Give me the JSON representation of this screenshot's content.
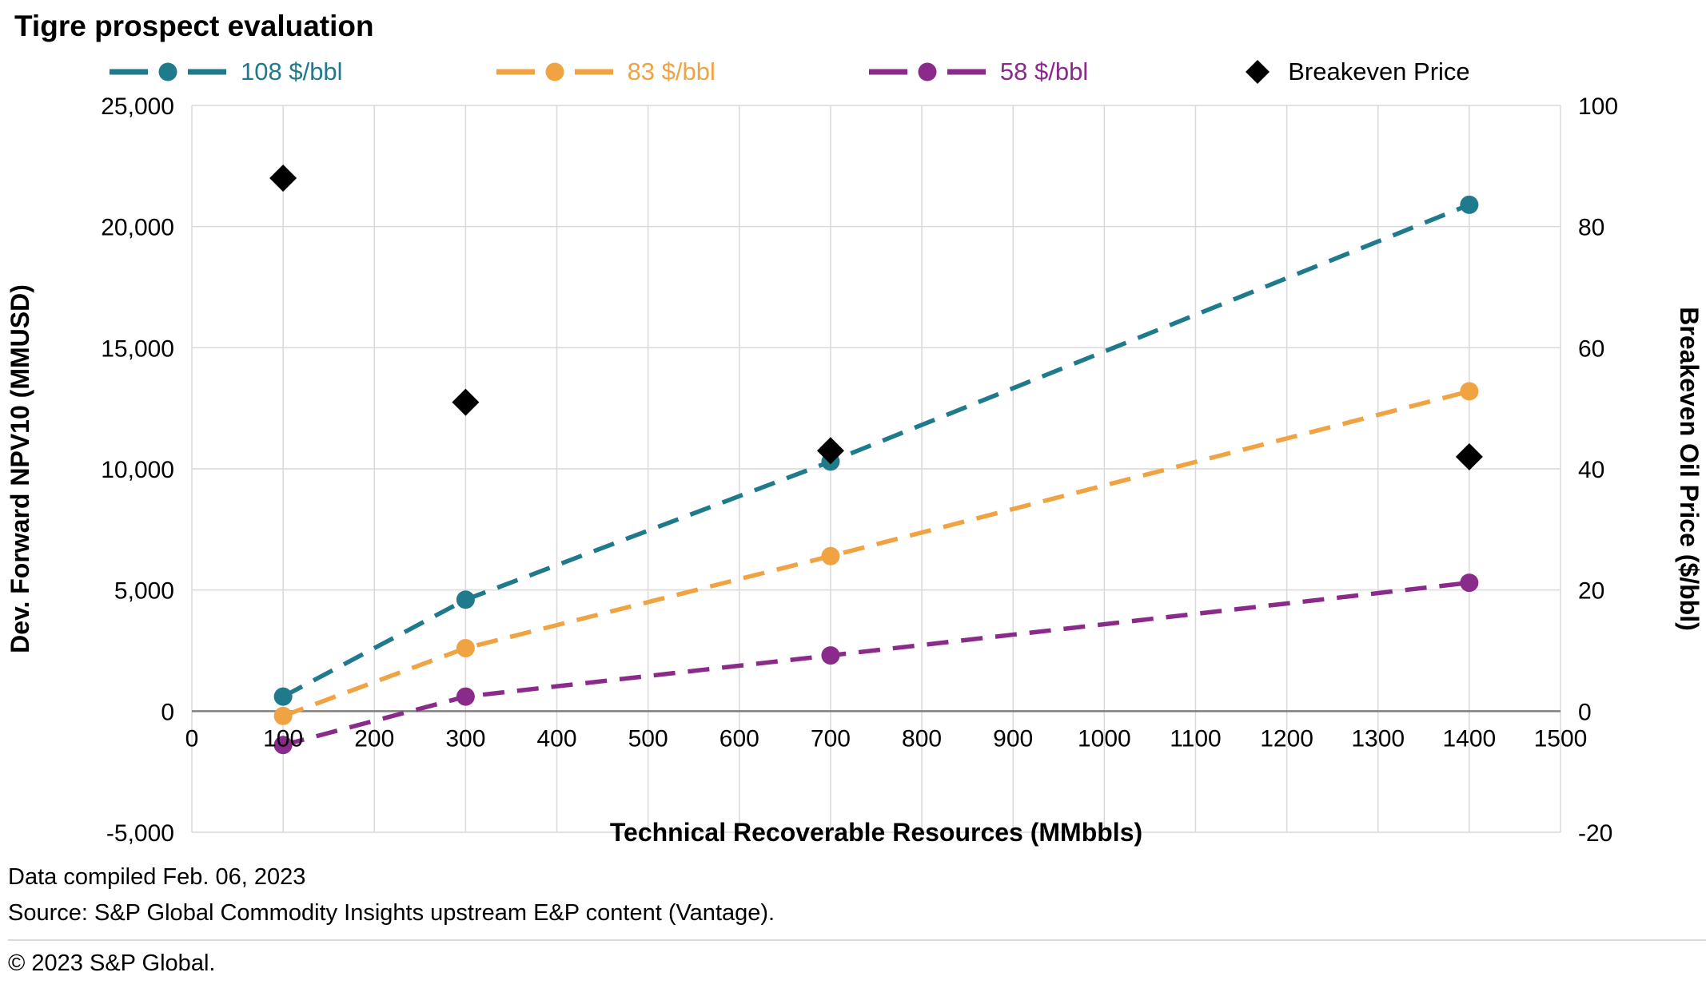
{
  "chart_data": {
    "type": "line",
    "title": "Tigre prospect evaluation",
    "xlabel": "Technical Recoverable Resources (MMbbls)",
    "ylabel_left": "Dev. Forward NPV10 (MMUSD)",
    "ylabel_right": "Breakeven Oil Price ($/bbl)",
    "xlim": [
      0,
      1500
    ],
    "x_ticks": [
      0,
      100,
      200,
      300,
      400,
      500,
      600,
      700,
      800,
      900,
      1000,
      1100,
      1200,
      1300,
      1400,
      1500
    ],
    "x_tick_labels": [
      "0",
      "100",
      "200",
      "300",
      "400",
      "500",
      "600",
      "700",
      "800",
      "900",
      "1000",
      "1100",
      "1200",
      "1300",
      "1400",
      "1500"
    ],
    "ylim_left": [
      -5000,
      25000
    ],
    "y_ticks_left": [
      25000,
      20000,
      15000,
      10000,
      5000,
      0,
      -5000
    ],
    "y_tick_labels_left": [
      "25,000",
      "20,000",
      "15,000",
      "10,000",
      "5,000",
      "0",
      "-5,000"
    ],
    "ylim_right": [
      -20,
      100
    ],
    "y_ticks_right": [
      100,
      80,
      60,
      40,
      20,
      0,
      -20
    ],
    "y_tick_labels_right": [
      "100",
      "80",
      "60",
      "40",
      "20",
      "0",
      "-20"
    ],
    "grid": true,
    "legend_position": "top",
    "x": [
      100,
      300,
      700,
      1400
    ],
    "series": [
      {
        "name": "108 $/bbl",
        "axis": "left",
        "color": "#1f7a8c",
        "marker": "circle",
        "line": "dashed",
        "values": [
          600,
          4600,
          10300,
          20900
        ]
      },
      {
        "name": "83 $/bbl",
        "axis": "left",
        "color": "#f0a343",
        "marker": "circle",
        "line": "dashed",
        "values": [
          -200,
          2600,
          6400,
          13200
        ]
      },
      {
        "name": "58 $/bbl",
        "axis": "left",
        "color": "#8a2a8a",
        "marker": "circle",
        "line": "dashed",
        "values": [
          -1400,
          600,
          2300,
          5300
        ]
      },
      {
        "name": "Breakeven Price",
        "axis": "right",
        "color": "#000000",
        "marker": "diamond",
        "line": "none",
        "values": [
          88,
          51,
          43,
          42
        ]
      }
    ],
    "colors": {
      "grid": "#d9d9d9",
      "zero_axis": "#7f7f7f",
      "text": "#000000"
    }
  },
  "footer": {
    "compiled": "Data compiled Feb. 06, 2023",
    "source": "Source: S&P Global Commodity Insights upstream E&P content (Vantage).",
    "copyright": "© 2023 S&P Global."
  }
}
